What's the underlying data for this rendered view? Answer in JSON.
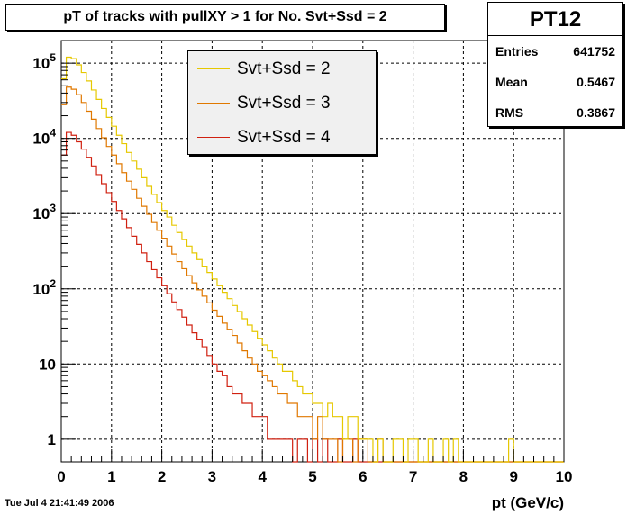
{
  "timestamp": "Tue Jul  4 21:41:49 2006",
  "stats": {
    "name": "PT12",
    "rows": [
      {
        "label": "Entries",
        "value": "641752"
      },
      {
        "label": "Mean",
        "value": "0.5467"
      },
      {
        "label": "RMS",
        "value": "0.3867"
      }
    ]
  },
  "chart_data": {
    "type": "line",
    "title": "pT of tracks with pullXY > 1 for No. Svt+Ssd = 2",
    "xlabel": "pt (GeV/c)",
    "ylabel": "",
    "xlim": [
      0,
      10
    ],
    "ylim": [
      0.5,
      200000
    ],
    "yscale": "log",
    "grid": true,
    "legend": "top-center",
    "xticks": [
      "0",
      "1",
      "2",
      "3",
      "4",
      "5",
      "6",
      "7",
      "8",
      "9",
      "10"
    ],
    "yticks": [
      {
        "value": 1,
        "label": "1"
      },
      {
        "value": 10,
        "label": "10"
      },
      {
        "value": 100,
        "label": "10",
        "exp": "2"
      },
      {
        "value": 1000,
        "label": "10",
        "exp": "3"
      },
      {
        "value": 10000,
        "label": "10",
        "exp": "4"
      },
      {
        "value": 100000,
        "label": "10",
        "exp": "5"
      }
    ],
    "bin_width": 0.1,
    "series": [
      {
        "name": "Svt+Ssd = 2",
        "color": "#e6c800",
        "values": [
          62000,
          120000,
          115000,
          95000,
          75000,
          58000,
          44000,
          33000,
          25000,
          19000,
          14500,
          11000,
          8500,
          6500,
          5000,
          3900,
          3000,
          2300,
          1800,
          1400,
          1100,
          900,
          700,
          560,
          450,
          370,
          300,
          245,
          200,
          165,
          135,
          110,
          90,
          74,
          60,
          50,
          40,
          33,
          27,
          22,
          18,
          15,
          12,
          10,
          8,
          8,
          6,
          5,
          4,
          4,
          3,
          3,
          2,
          3,
          2,
          2,
          1,
          2,
          2,
          1,
          1,
          1,
          0,
          1,
          0,
          0,
          1,
          1,
          0,
          1,
          1,
          0,
          0,
          1,
          0,
          0,
          1,
          0,
          1,
          0,
          0,
          0,
          0,
          0,
          0,
          0,
          0,
          0,
          0,
          1,
          0,
          0,
          0,
          0,
          0,
          0,
          0,
          0,
          0,
          0
        ]
      },
      {
        "name": "Svt+Ssd = 3",
        "color": "#e07800",
        "values": [
          28000,
          48000,
          45000,
          38000,
          30000,
          23000,
          18000,
          13500,
          10200,
          7800,
          6000,
          4600,
          3500,
          2700,
          2100,
          1600,
          1250,
          980,
          760,
          600,
          470,
          370,
          290,
          230,
          185,
          150,
          120,
          97,
          80,
          65,
          52,
          43,
          35,
          29,
          24,
          19,
          15,
          12,
          10,
          8,
          7,
          6,
          5,
          4,
          4,
          3,
          3,
          2,
          2,
          2,
          1,
          2,
          1,
          1,
          1,
          0,
          1,
          1,
          0,
          1,
          1,
          0,
          0,
          1,
          0,
          0,
          0,
          0,
          0,
          0,
          0,
          0,
          0,
          0,
          0,
          0,
          0,
          0,
          0,
          0,
          0,
          0,
          0,
          0,
          0,
          0,
          0,
          0,
          0,
          0,
          0,
          0,
          0,
          0,
          0,
          0,
          0,
          0,
          0,
          0
        ]
      },
      {
        "name": "Svt+Ssd = 4",
        "color": "#d02010",
        "values": [
          6000,
          12000,
          11000,
          9000,
          7200,
          5600,
          4300,
          3300,
          2500,
          1900,
          1450,
          1100,
          850,
          650,
          500,
          390,
          300,
          230,
          180,
          140,
          110,
          86,
          67,
          53,
          42,
          33,
          26,
          21,
          17,
          13,
          10,
          8,
          7,
          5,
          4,
          4,
          3,
          3,
          2,
          2,
          2,
          1,
          1,
          1,
          1,
          1,
          0,
          1,
          1,
          0,
          1,
          0,
          1,
          0,
          0,
          1,
          0,
          0,
          1,
          0,
          0,
          0,
          0,
          0,
          0,
          0,
          0,
          0,
          0,
          0,
          0,
          0,
          0,
          0,
          0,
          0,
          0,
          0,
          0,
          0,
          0,
          0,
          0,
          0,
          0,
          0,
          0,
          0,
          0,
          0,
          0,
          0,
          0,
          0,
          0,
          0,
          0,
          0,
          0,
          0
        ]
      }
    ]
  }
}
